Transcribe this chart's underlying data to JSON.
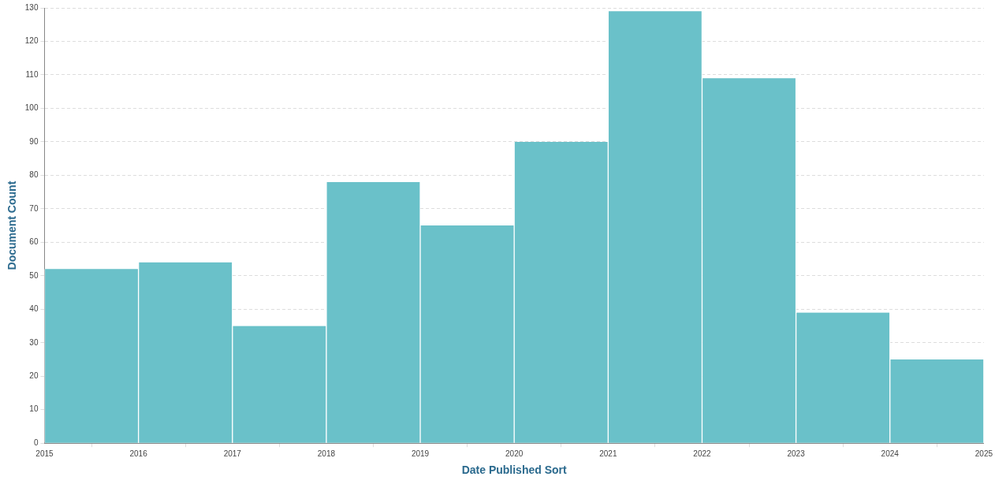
{
  "chart_data": {
    "type": "histogram",
    "xlabel": "Date Published Sort",
    "ylabel": "Document Count",
    "bins": [
      2015,
      2016,
      2017,
      2018,
      2019,
      2020,
      2021,
      2022,
      2023,
      2024,
      2025
    ],
    "values": [
      52,
      54,
      35,
      78,
      65,
      90,
      129,
      109,
      39,
      25
    ],
    "color": "#6ac1c9",
    "xlim": [
      2015,
      2025
    ],
    "xticks": [
      2015,
      2016,
      2017,
      2018,
      2019,
      2020,
      2021,
      2022,
      2023,
      2024,
      2025
    ],
    "ylim": [
      0,
      130
    ],
    "yticks": [
      0,
      10,
      20,
      30,
      40,
      50,
      60,
      70,
      80,
      90,
      100,
      110,
      120,
      130
    ],
    "grid": "y",
    "legend": false
  }
}
